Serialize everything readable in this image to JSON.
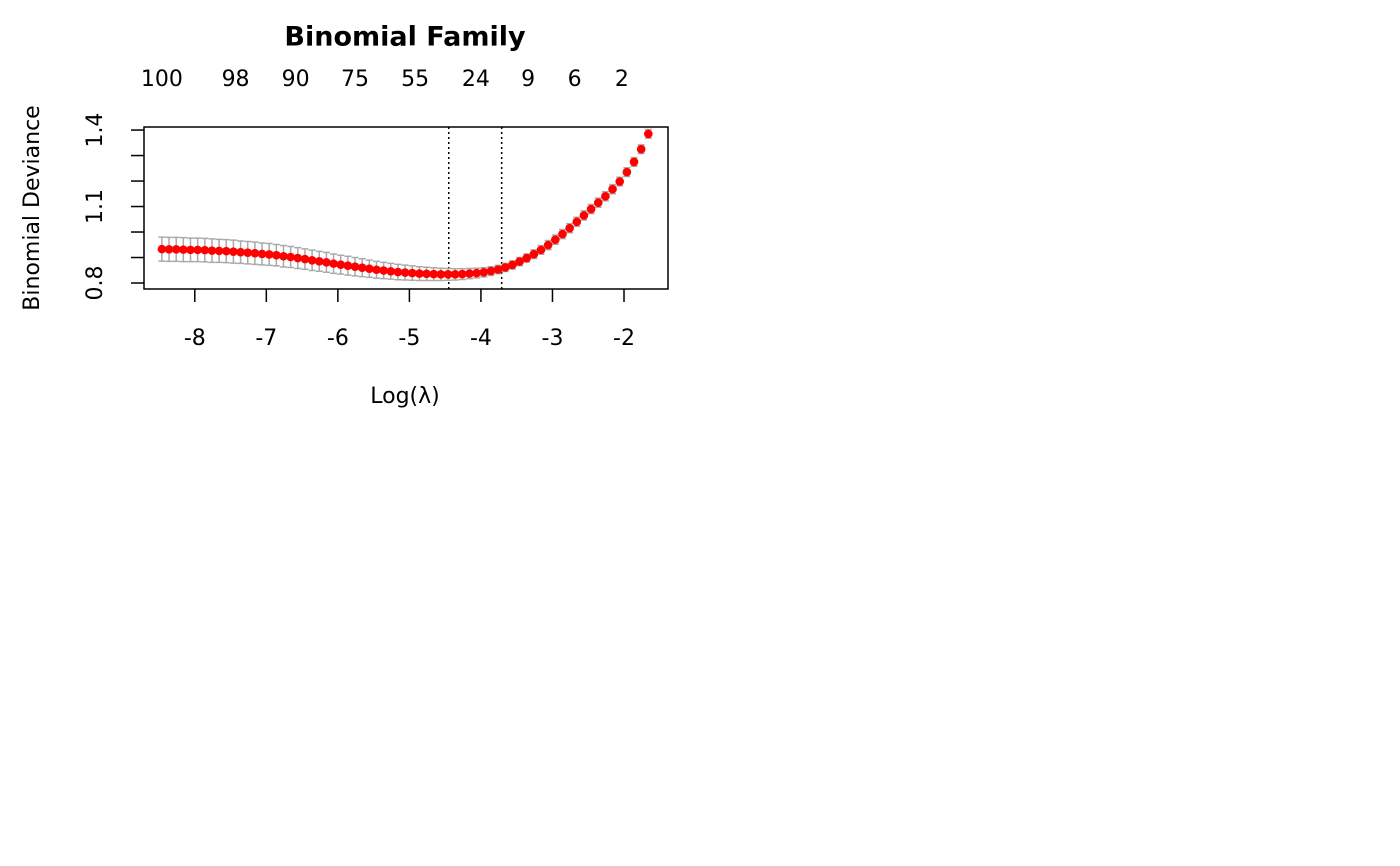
{
  "chart_data": {
    "type": "errorbar-scatter",
    "title": "Binomial Family",
    "x_label": "Log(λ)",
    "y_label": "Binomial Deviance",
    "color": "red",
    "error_color": "#a9a9a9",
    "x": [
      -8.46,
      -8.36,
      -8.26,
      -8.16,
      -8.06,
      -7.96,
      -7.86,
      -7.76,
      -7.66,
      -7.56,
      -7.46,
      -7.36,
      -7.26,
      -7.16,
      -7.06,
      -6.96,
      -6.86,
      -6.76,
      -6.66,
      -6.56,
      -6.46,
      -6.36,
      -6.26,
      -6.16,
      -6.06,
      -5.96,
      -5.86,
      -5.76,
      -5.66,
      -5.56,
      -5.46,
      -5.36,
      -5.26,
      -5.16,
      -5.06,
      -4.96,
      -4.86,
      -4.76,
      -4.66,
      -4.56,
      -4.46,
      -4.36,
      -4.26,
      -4.16,
      -4.06,
      -3.96,
      -3.86,
      -3.76,
      -3.66,
      -3.56,
      -3.46,
      -3.36,
      -3.26,
      -3.16,
      -3.06,
      -2.96,
      -2.86,
      -2.76,
      -2.66,
      -2.56,
      -2.46,
      -2.36,
      -2.26,
      -2.16,
      -2.06,
      -1.96,
      -1.86,
      -1.76,
      -1.66
    ],
    "values": [
      0.933,
      0.932,
      0.932,
      0.931,
      0.93,
      0.93,
      0.929,
      0.927,
      0.926,
      0.925,
      0.923,
      0.921,
      0.919,
      0.917,
      0.914,
      0.912,
      0.909,
      0.905,
      0.902,
      0.898,
      0.894,
      0.889,
      0.885,
      0.881,
      0.876,
      0.872,
      0.868,
      0.864,
      0.86,
      0.856,
      0.852,
      0.849,
      0.846,
      0.843,
      0.841,
      0.839,
      0.837,
      0.836,
      0.835,
      0.834,
      0.834,
      0.834,
      0.835,
      0.837,
      0.839,
      0.842,
      0.847,
      0.853,
      0.861,
      0.871,
      0.884,
      0.898,
      0.913,
      0.93,
      0.949,
      0.97,
      0.992,
      1.015,
      1.04,
      1.065,
      1.09,
      1.115,
      1.14,
      1.168,
      1.198,
      1.235,
      1.275,
      1.325,
      1.385
    ],
    "errors": [
      0.047,
      0.047,
      0.047,
      0.047,
      0.046,
      0.046,
      0.046,
      0.046,
      0.045,
      0.045,
      0.045,
      0.044,
      0.044,
      0.044,
      0.043,
      0.043,
      0.042,
      0.042,
      0.041,
      0.041,
      0.04,
      0.04,
      0.039,
      0.039,
      0.038,
      0.037,
      0.037,
      0.036,
      0.035,
      0.034,
      0.033,
      0.032,
      0.031,
      0.03,
      0.029,
      0.028,
      0.027,
      0.026,
      0.025,
      0.024,
      0.023,
      0.022,
      0.021,
      0.02,
      0.019,
      0.018,
      0.017,
      0.016,
      0.016,
      0.016,
      0.016,
      0.016,
      0.017,
      0.017,
      0.018,
      0.018,
      0.018,
      0.018,
      0.018,
      0.018,
      0.018,
      0.018,
      0.018,
      0.018,
      0.017,
      0.017,
      0.017,
      0.017,
      0.017
    ],
    "vlines": [
      -4.45,
      -3.71
    ],
    "xlim": [
      -8.71,
      -1.385
    ],
    "ylim": [
      0.7765,
      1.412
    ],
    "xticks": [
      -8,
      -7,
      -6,
      -5,
      -4,
      -3,
      -2
    ],
    "yticks": [
      0.8,
      1.1,
      1.4
    ],
    "yticks_unlabeled": [
      0.9,
      1.0,
      1.2,
      1.3
    ],
    "top_ticks": [
      {
        "value": -8.46,
        "label": "100"
      },
      {
        "value": -7.43,
        "label": "98"
      },
      {
        "value": -6.59,
        "label": "90"
      },
      {
        "value": -5.76,
        "label": "75"
      },
      {
        "value": -4.92,
        "label": "55"
      },
      {
        "value": -4.07,
        "label": "24"
      },
      {
        "value": -3.34,
        "label": "9"
      },
      {
        "value": -2.69,
        "label": "6"
      },
      {
        "value": -2.03,
        "label": "2"
      }
    ]
  }
}
